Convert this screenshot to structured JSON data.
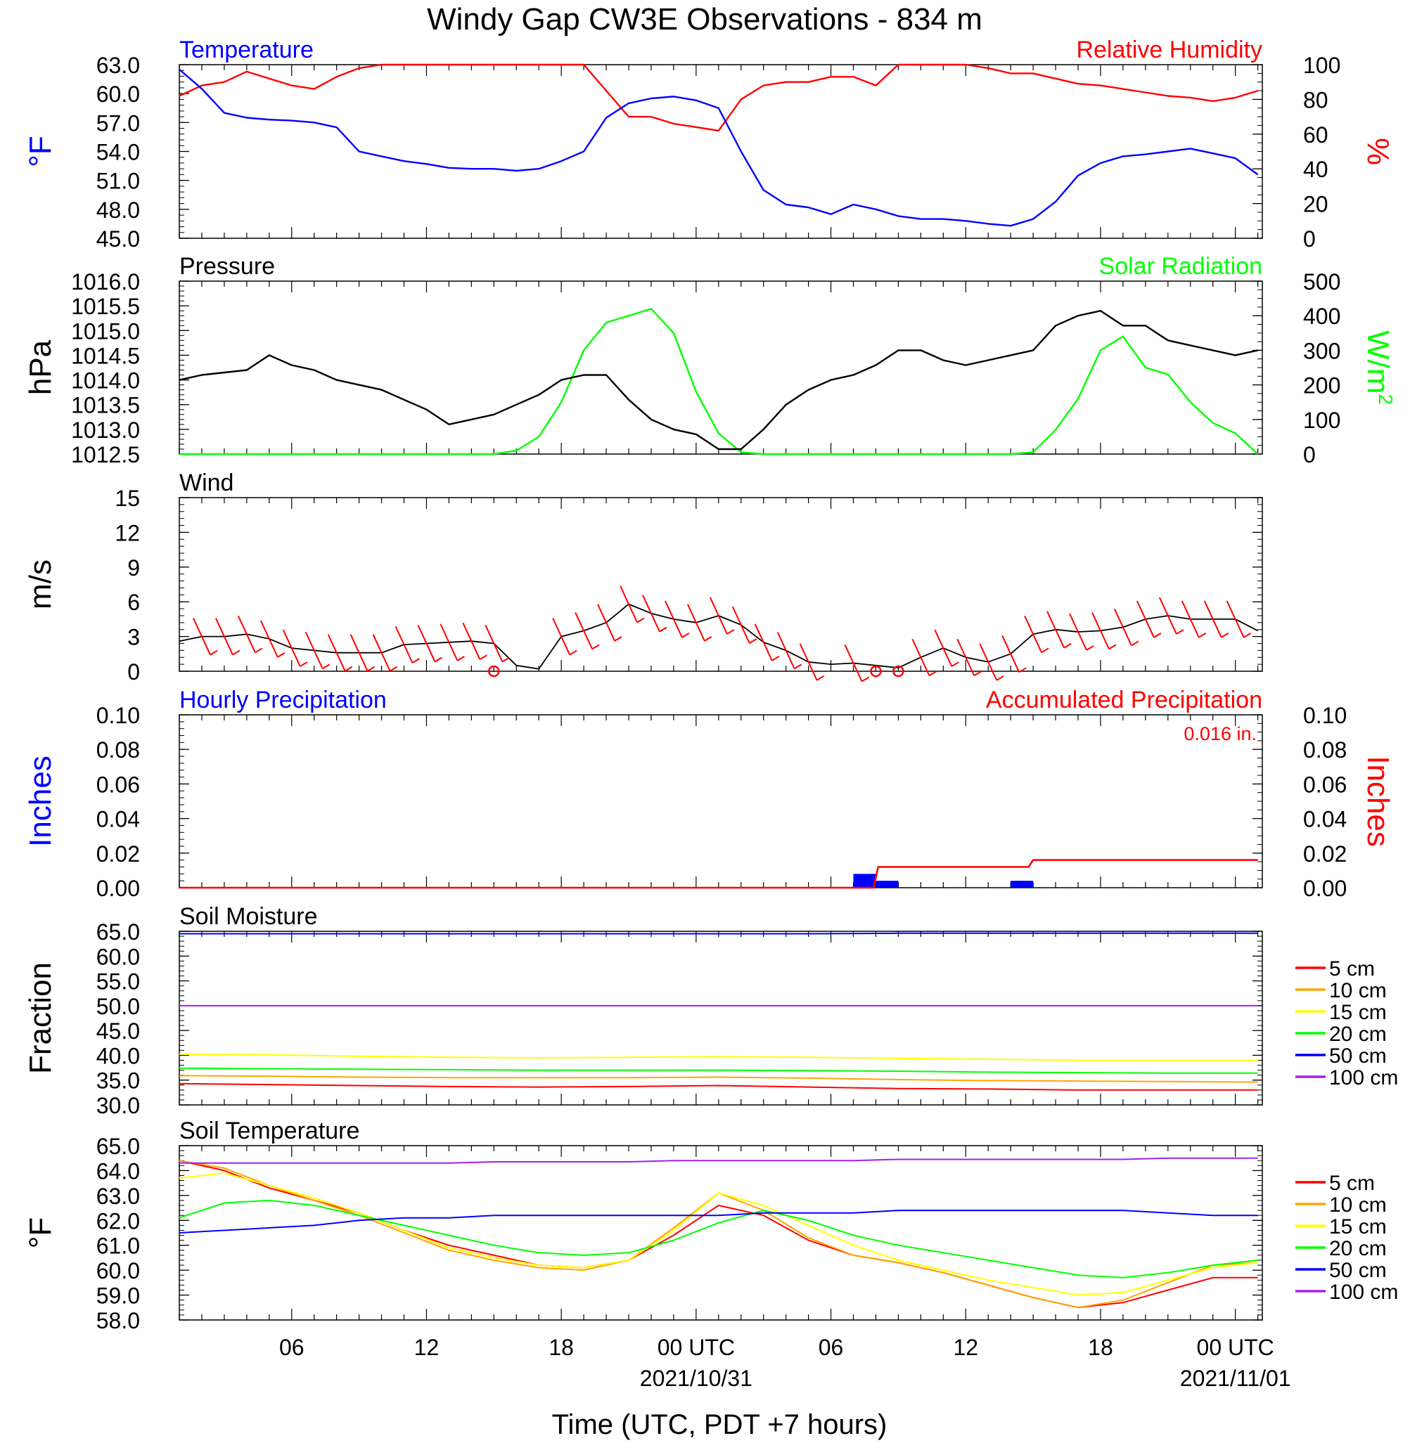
{
  "title": "Windy Gap CW3E Observations - 834 m",
  "xaxis": {
    "title": "Time (UTC, PDT +7 hours)",
    "tick_labels": [
      "06",
      "12",
      "18",
      "00 UTC",
      "06",
      "12",
      "18",
      "00 UTC"
    ],
    "date_labels": [
      "2021/10/31",
      "2021/11/01"
    ]
  },
  "colors": {
    "blue": "#0000ff",
    "red": "#ff0000",
    "green": "#00ff00",
    "black": "#000000",
    "orange": "#ffa500",
    "yellow": "#ffff00",
    "purple": "#a020f0"
  },
  "chart_data": [
    {
      "type": "line",
      "left_label": "Temperature",
      "right_label": "Relative Humidity",
      "left_unit": "°F",
      "right_unit": "%",
      "ylim_left": [
        45.0,
        63.0
      ],
      "ylim_right": [
        0,
        100
      ],
      "left_ticks": [
        "63.0",
        "60.0",
        "57.0",
        "54.0",
        "51.0",
        "48.0",
        "45.0"
      ],
      "right_ticks": [
        "100",
        "80",
        "60",
        "40",
        "20",
        "0"
      ],
      "x_hours_from_start": [
        0,
        1,
        2,
        3,
        4,
        5,
        6,
        7,
        8,
        9,
        10,
        11,
        12,
        13,
        14,
        15,
        16,
        17,
        18,
        19,
        20,
        21,
        22,
        23,
        24,
        25,
        26,
        27,
        28,
        29,
        30,
        31,
        32,
        33,
        34,
        35,
        36,
        37,
        38,
        39,
        40,
        41,
        42,
        43,
        44,
        45,
        46,
        47,
        48
      ],
      "series": [
        {
          "name": "Temperature",
          "axis": "left",
          "values": [
            62.5,
            60.5,
            58.0,
            57.5,
            57.3,
            57.2,
            57.0,
            56.5,
            54.0,
            53.5,
            53.0,
            52.7,
            52.3,
            52.2,
            52.2,
            52.0,
            52.2,
            53.0,
            54.0,
            57.5,
            59.0,
            59.5,
            59.7,
            59.3,
            58.5,
            54.0,
            50.0,
            48.5,
            48.2,
            47.5,
            48.5,
            48.0,
            47.3,
            47.0,
            47.0,
            46.8,
            46.5,
            46.3,
            47.0,
            48.8,
            51.5,
            52.8,
            53.5,
            53.7,
            54.0,
            54.3,
            53.8,
            53.3,
            51.6
          ]
        },
        {
          "name": "Relative Humidity",
          "axis": "right",
          "values": [
            82,
            88,
            90,
            96,
            92,
            88,
            86,
            93,
            98,
            100,
            100,
            100,
            100,
            100,
            100,
            100,
            100,
            100,
            100,
            85,
            70,
            70,
            66,
            64,
            62,
            80,
            88,
            90,
            90,
            93,
            93,
            88,
            100,
            100,
            100,
            100,
            98,
            95,
            95,
            92,
            89,
            88,
            86,
            84,
            82,
            81,
            79,
            81,
            85
          ]
        }
      ]
    },
    {
      "type": "line",
      "left_label": "Pressure",
      "right_label": "Solar Radiation",
      "left_unit": "hPa",
      "right_unit": "W/m2",
      "ylim_left": [
        1012.5,
        1016.0
      ],
      "ylim_right": [
        0,
        500
      ],
      "left_ticks": [
        "1016.0",
        "1015.5",
        "1015.0",
        "1014.5",
        "1014.0",
        "1013.5",
        "1013.0",
        "1012.5"
      ],
      "right_ticks": [
        "500",
        "400",
        "300",
        "200",
        "100",
        "0"
      ],
      "x_hours_from_start": [
        0,
        1,
        2,
        3,
        4,
        5,
        6,
        7,
        8,
        9,
        10,
        11,
        12,
        13,
        14,
        15,
        16,
        17,
        18,
        19,
        20,
        21,
        22,
        23,
        24,
        25,
        26,
        27,
        28,
        29,
        30,
        31,
        32,
        33,
        34,
        35,
        36,
        37,
        38,
        39,
        40,
        41,
        42,
        43,
        44,
        45,
        46,
        47,
        48
      ],
      "series": [
        {
          "name": "Pressure",
          "axis": "left",
          "values": [
            1014.0,
            1014.1,
            1014.15,
            1014.2,
            1014.5,
            1014.3,
            1014.2,
            1014.0,
            1013.9,
            1013.8,
            1013.6,
            1013.4,
            1013.1,
            1013.2,
            1013.3,
            1013.5,
            1013.7,
            1014.0,
            1014.1,
            1014.1,
            1013.6,
            1013.2,
            1013.0,
            1012.9,
            1012.6,
            1012.6,
            1013.0,
            1013.5,
            1013.8,
            1014.0,
            1014.1,
            1014.3,
            1014.6,
            1014.6,
            1014.4,
            1014.3,
            1014.4,
            1014.5,
            1014.6,
            1015.1,
            1015.3,
            1015.4,
            1015.1,
            1015.1,
            1014.8,
            1014.7,
            1014.6,
            1014.5,
            1014.6
          ]
        },
        {
          "name": "Solar Radiation",
          "axis": "right",
          "values": [
            0,
            0,
            0,
            0,
            0,
            0,
            0,
            0,
            0,
            0,
            0,
            0,
            0,
            0,
            0,
            10,
            50,
            150,
            300,
            380,
            400,
            420,
            350,
            180,
            60,
            5,
            0,
            0,
            0,
            0,
            0,
            0,
            0,
            0,
            0,
            0,
            0,
            0,
            5,
            70,
            160,
            300,
            340,
            250,
            230,
            150,
            90,
            60,
            0
          ]
        }
      ]
    },
    {
      "type": "line",
      "left_label": "Wind",
      "left_unit": "m/s",
      "ylim": [
        0,
        15
      ],
      "y_ticks": [
        "15",
        "12",
        "9",
        "6",
        "3",
        "0"
      ],
      "x_hours_from_start": [
        0,
        1,
        2,
        3,
        4,
        5,
        6,
        7,
        8,
        9,
        10,
        11,
        12,
        13,
        14,
        15,
        16,
        17,
        18,
        19,
        20,
        21,
        22,
        23,
        24,
        25,
        26,
        27,
        28,
        29,
        30,
        31,
        32,
        33,
        34,
        35,
        36,
        37,
        38,
        39,
        40,
        41,
        42,
        43,
        44,
        45,
        46,
        47,
        48
      ],
      "series": [
        {
          "name": "Wind",
          "values": [
            2.6,
            3.0,
            3.0,
            3.2,
            2.8,
            2.0,
            1.8,
            1.6,
            1.6,
            1.6,
            2.3,
            2.4,
            2.5,
            2.6,
            2.4,
            0.5,
            0.2,
            3.0,
            3.5,
            4.2,
            5.8,
            5.0,
            4.5,
            4.2,
            4.8,
            4.0,
            2.5,
            1.8,
            0.8,
            0.6,
            0.7,
            0.5,
            0.3,
            1.2,
            2.0,
            1.2,
            0.8,
            1.5,
            3.2,
            3.6,
            3.4,
            3.5,
            3.8,
            4.5,
            4.8,
            4.5,
            4.5,
            4.5,
            3.5
          ]
        }
      ],
      "calm_markers_hours": [
        14.0,
        31.0,
        32.0
      ]
    },
    {
      "type": "bar",
      "left_label": "Hourly Precipitation",
      "right_label": "Accumulated Precipitation",
      "left_unit": "Inches",
      "right_unit": "Inches",
      "annotation": "0.016 in.",
      "ylim": [
        0,
        0.1
      ],
      "left_ticks": [
        "0.10",
        "0.08",
        "0.06",
        "0.04",
        "0.02",
        "0.00"
      ],
      "right_ticks": [
        "0.10",
        "0.08",
        "0.06",
        "0.04",
        "0.02",
        "0.00"
      ],
      "hourly_bars": [
        {
          "hour_start": 30.0,
          "value": 0.008
        },
        {
          "hour_start": 31.0,
          "value": 0.004
        },
        {
          "hour_start": 37.0,
          "value": 0.004
        }
      ],
      "accumulated": {
        "x": [
          0,
          30.9,
          31.1,
          37.8,
          38.0,
          48
        ],
        "values": [
          0,
          0,
          0.012,
          0.012,
          0.016,
          0.016
        ]
      }
    },
    {
      "type": "line",
      "left_label": "Soil Moisture",
      "left_unit": "Fraction",
      "ylim": [
        30.0,
        65.0
      ],
      "y_ticks": [
        "65.0",
        "60.0",
        "55.0",
        "50.0",
        "45.0",
        "40.0",
        "35.0",
        "30.0"
      ],
      "x_hours_from_start": [
        0,
        4,
        8,
        12,
        16,
        20,
        24,
        28,
        32,
        36,
        40,
        44,
        48
      ],
      "series": [
        {
          "name": "5 cm",
          "color": "#ff0000",
          "values": [
            34.3,
            34.1,
            33.9,
            33.7,
            33.6,
            33.7,
            33.9,
            33.6,
            33.3,
            33.2,
            33.0,
            33.0,
            33.0
          ]
        },
        {
          "name": "10 cm",
          "color": "#ffa500",
          "values": [
            35.9,
            35.8,
            35.6,
            35.5,
            35.5,
            35.5,
            35.6,
            35.4,
            35.1,
            34.9,
            34.8,
            34.7,
            34.6
          ]
        },
        {
          "name": "15 cm",
          "color": "#ffff00",
          "values": [
            40.2,
            40.1,
            39.8,
            39.6,
            39.5,
            39.6,
            39.7,
            39.6,
            39.4,
            39.2,
            39.0,
            39.0,
            39.0
          ]
        },
        {
          "name": "20 cm",
          "color": "#00ff00",
          "values": [
            37.4,
            37.3,
            37.2,
            37.1,
            37.0,
            37.0,
            37.0,
            36.9,
            36.8,
            36.6,
            36.5,
            36.4,
            36.4
          ]
        },
        {
          "name": "50 cm",
          "color": "#0000ff",
          "values": [
            64.5,
            64.5,
            64.5,
            64.5,
            64.5,
            64.5,
            64.5,
            64.5,
            64.6,
            64.6,
            64.6,
            64.6,
            64.6
          ]
        },
        {
          "name": "100 cm",
          "color": "#a020f0",
          "values": [
            50.0,
            50.0,
            50.0,
            50.0,
            50.0,
            50.0,
            50.0,
            50.0,
            50.0,
            50.0,
            50.0,
            50.0,
            50.0
          ]
        }
      ]
    },
    {
      "type": "line",
      "left_label": "Soil Temperature",
      "left_unit": "°F",
      "ylim": [
        58.0,
        65.0
      ],
      "y_ticks": [
        "65.0",
        "64.0",
        "63.0",
        "62.0",
        "61.0",
        "60.0",
        "59.0",
        "58.0"
      ],
      "x_hours_from_start": [
        0,
        2,
        4,
        6,
        8,
        10,
        12,
        14,
        16,
        18,
        20,
        22,
        24,
        26,
        28,
        30,
        32,
        34,
        36,
        38,
        40,
        42,
        44,
        46,
        48
      ],
      "series": [
        {
          "name": "5 cm",
          "color": "#ff0000",
          "values": [
            64.4,
            64.0,
            63.3,
            62.8,
            62.3,
            61.6,
            61.0,
            60.6,
            60.2,
            60.1,
            60.4,
            61.4,
            62.6,
            62.2,
            61.2,
            60.6,
            60.3,
            59.9,
            59.4,
            58.9,
            58.5,
            58.7,
            59.2,
            59.7,
            59.7
          ]
        },
        {
          "name": "10 cm",
          "color": "#ffa500",
          "values": [
            64.4,
            64.1,
            63.4,
            62.8,
            62.2,
            61.5,
            60.8,
            60.4,
            60.1,
            60.0,
            60.4,
            61.7,
            63.1,
            62.4,
            61.3,
            60.6,
            60.3,
            59.9,
            59.4,
            58.9,
            58.5,
            58.8,
            59.5,
            60.2,
            60.3
          ]
        },
        {
          "name": "15 cm",
          "color": "#ffff00",
          "values": [
            63.7,
            63.9,
            63.4,
            62.9,
            62.3,
            61.6,
            60.9,
            60.5,
            60.2,
            60.1,
            60.4,
            61.6,
            63.1,
            62.6,
            61.8,
            61.0,
            60.4,
            60.0,
            59.6,
            59.3,
            59.0,
            59.1,
            59.6,
            60.1,
            60.3
          ]
        },
        {
          "name": "20 cm",
          "color": "#00ff00",
          "values": [
            62.1,
            62.7,
            62.8,
            62.6,
            62.2,
            61.8,
            61.4,
            61.0,
            60.7,
            60.6,
            60.7,
            61.2,
            61.9,
            62.4,
            62.0,
            61.4,
            61.0,
            60.7,
            60.4,
            60.1,
            59.8,
            59.7,
            59.9,
            60.2,
            60.4
          ]
        },
        {
          "name": "50 cm",
          "color": "#0000ff",
          "values": [
            61.5,
            61.6,
            61.7,
            61.8,
            62.0,
            62.1,
            62.1,
            62.2,
            62.2,
            62.2,
            62.2,
            62.2,
            62.2,
            62.3,
            62.3,
            62.3,
            62.4,
            62.4,
            62.4,
            62.4,
            62.4,
            62.4,
            62.3,
            62.2,
            62.2
          ]
        },
        {
          "name": "100 cm",
          "color": "#a020f0",
          "values": [
            64.3,
            64.3,
            64.3,
            64.3,
            64.3,
            64.3,
            64.3,
            64.35,
            64.35,
            64.35,
            64.35,
            64.4,
            64.4,
            64.4,
            64.4,
            64.4,
            64.45,
            64.45,
            64.45,
            64.45,
            64.45,
            64.45,
            64.5,
            64.5,
            64.5
          ]
        }
      ],
      "legend": [
        "5 cm",
        "10 cm",
        "15 cm",
        "20 cm",
        "50 cm",
        "100 cm"
      ]
    }
  ]
}
